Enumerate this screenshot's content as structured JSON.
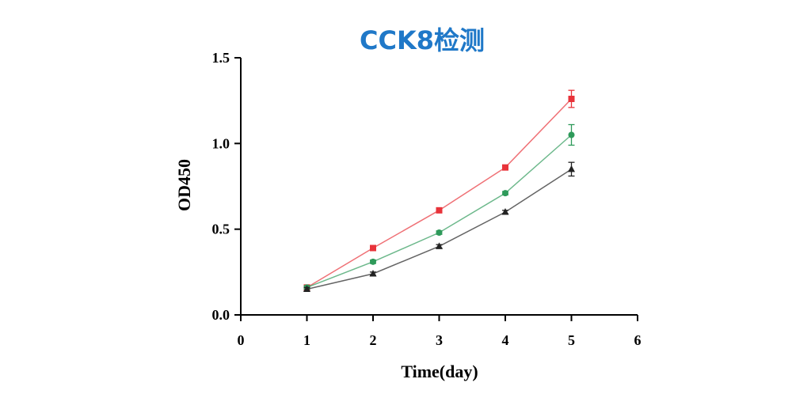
{
  "chart_data": {
    "type": "line",
    "title": "CCK8检测",
    "xlabel": "Time(day)",
    "ylabel": "OD450",
    "xlim": [
      0,
      6
    ],
    "ylim": [
      0,
      1.5
    ],
    "xticks": [
      "0",
      "1",
      "2",
      "3",
      "4",
      "5",
      "6"
    ],
    "yticks": [
      "0.0",
      "0.5",
      "1.0",
      "1.5"
    ],
    "grid": false,
    "legend": "none",
    "x": [
      1,
      2,
      3,
      4,
      5
    ],
    "series": [
      {
        "values": [
          0.16,
          0.39,
          0.61,
          0.86,
          1.26
        ],
        "error": [
          0.01,
          0.01,
          0.01,
          0.01,
          0.05
        ],
        "color": "#e8333a",
        "marker": "square"
      },
      {
        "values": [
          0.16,
          0.31,
          0.48,
          0.71,
          1.05
        ],
        "error": [
          0.01,
          0.01,
          0.01,
          0.01,
          0.06
        ],
        "color": "#2e9a5a",
        "marker": "circle"
      },
      {
        "values": [
          0.15,
          0.24,
          0.4,
          0.6,
          0.85
        ],
        "error": [
          0.01,
          0.01,
          0.01,
          0.01,
          0.04
        ],
        "color": "#222222",
        "marker": "triangle"
      }
    ]
  },
  "colors": {
    "title": "#1f78c8",
    "axis": "#000000"
  }
}
